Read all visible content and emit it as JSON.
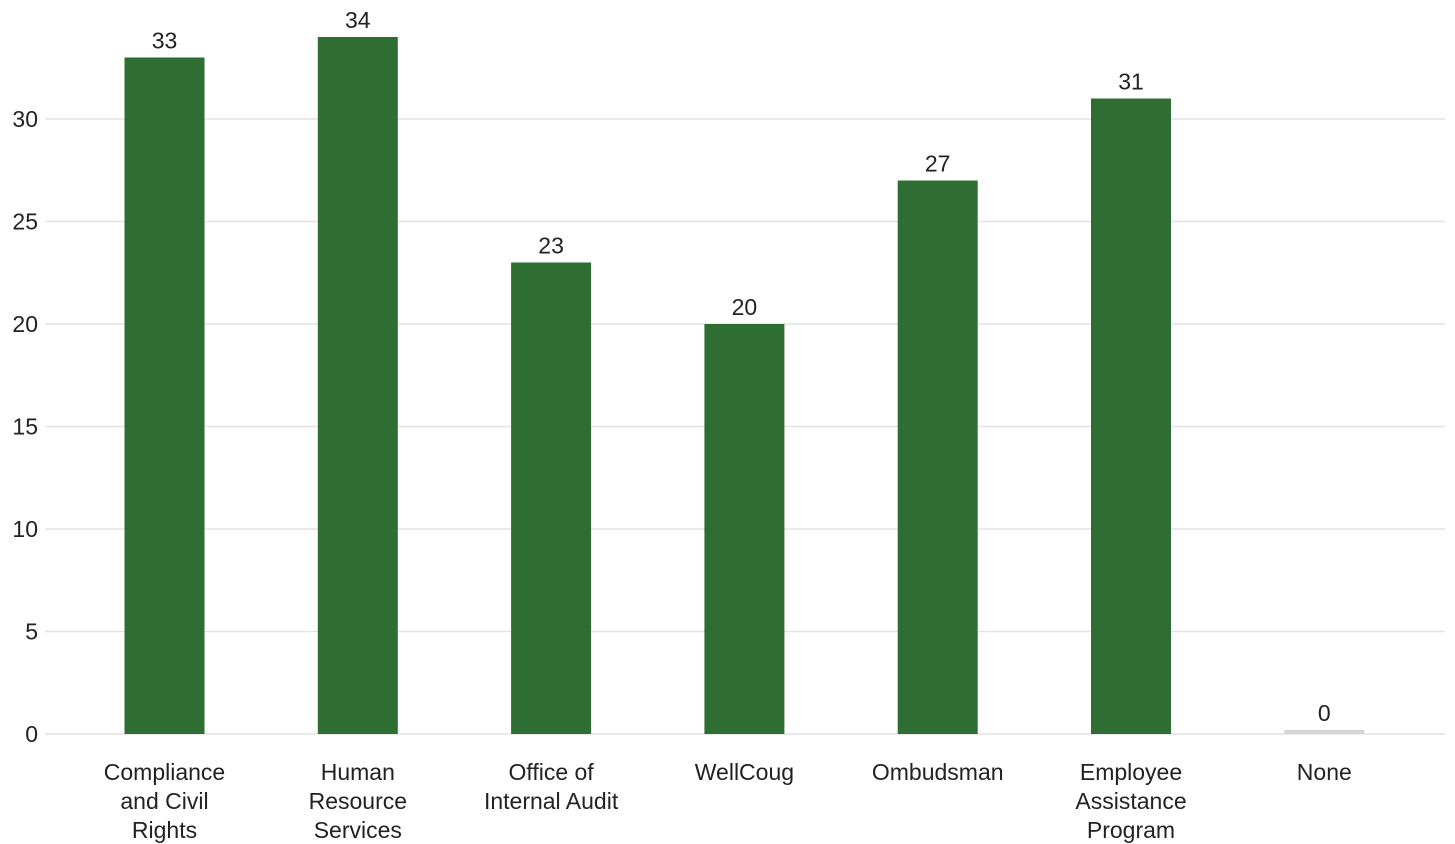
{
  "chart_data": {
    "type": "bar",
    "categories": [
      [
        "Compliance",
        "and Civil",
        "Rights"
      ],
      [
        "Human",
        "Resource",
        "Services"
      ],
      [
        "Office of",
        "Internal Audit"
      ],
      [
        "WellCoug"
      ],
      [
        "Ombudsman"
      ],
      [
        "Employee",
        "Assistance",
        "Program"
      ],
      [
        "None"
      ]
    ],
    "values": [
      33,
      34,
      23,
      20,
      27,
      31,
      0
    ],
    "value_labels": [
      "33",
      "34",
      "23",
      "20",
      "27",
      "31",
      "0"
    ],
    "yticks": [
      0,
      5,
      10,
      15,
      20,
      25,
      30
    ],
    "ylim": [
      0,
      35
    ],
    "grid": true,
    "title": "",
    "xlabel": "",
    "ylabel": "",
    "colors": {
      "bar": "#2e6e32",
      "zero_bar": "#d4d4d4",
      "grid": "#e3e3e3",
      "text": "#222222"
    }
  }
}
